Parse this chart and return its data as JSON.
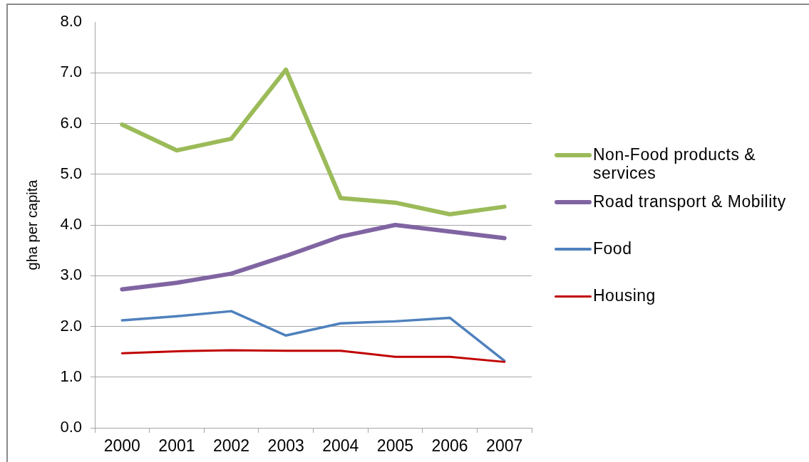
{
  "chart_data": {
    "type": "line",
    "ylabel": "gha per capita",
    "categories": [
      "2000",
      "2001",
      "2002",
      "2003",
      "2004",
      "2005",
      "2006",
      "2007"
    ],
    "series": [
      {
        "name": "Non-Food products & services",
        "color": "#9bbb59",
        "values": [
          5.98,
          5.47,
          5.7,
          7.06,
          4.53,
          4.44,
          4.21,
          4.36
        ]
      },
      {
        "name": "Road transport & Mobility",
        "color": "#8064a2",
        "values": [
          2.73,
          2.86,
          3.04,
          3.39,
          3.77,
          4.0,
          3.87,
          3.74
        ]
      },
      {
        "name": "Food",
        "color": "#4f81bd",
        "values": [
          2.12,
          2.2,
          2.3,
          1.82,
          2.06,
          2.1,
          2.17,
          1.32
        ]
      },
      {
        "name": "Housing",
        "color": "#c00000",
        "values": [
          1.47,
          1.51,
          1.53,
          1.52,
          1.52,
          1.4,
          1.4,
          1.3
        ]
      }
    ],
    "ylim": [
      0,
      8
    ],
    "yticks": [
      {
        "value": 0,
        "label": "0.0"
      },
      {
        "value": 1,
        "label": "1.0"
      },
      {
        "value": 2,
        "label": "2.0"
      },
      {
        "value": 3,
        "label": "3.0"
      },
      {
        "value": 4,
        "label": "4.0"
      },
      {
        "value": 5,
        "label": "5.0"
      },
      {
        "value": 6,
        "label": "6.0"
      },
      {
        "value": 7,
        "label": "7.0"
      },
      {
        "value": 8,
        "label": "8.0"
      }
    ],
    "grid": "y",
    "legend": "right"
  }
}
